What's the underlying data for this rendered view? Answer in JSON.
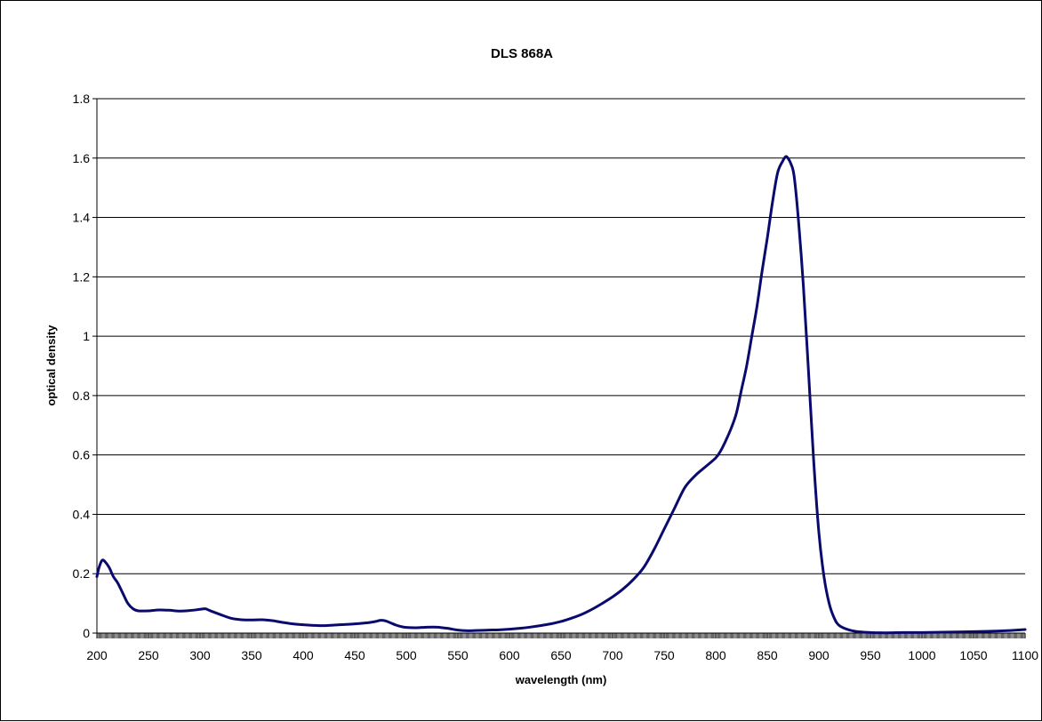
{
  "chart_data": {
    "type": "line",
    "title": "DLS 868A",
    "xlabel": "wavelength (nm)",
    "ylabel": "optical density",
    "xlim": [
      200,
      1100
    ],
    "ylim": [
      0,
      1.8
    ],
    "xticks": [
      200,
      250,
      300,
      350,
      400,
      450,
      500,
      550,
      600,
      650,
      700,
      750,
      800,
      850,
      900,
      950,
      1000,
      1050,
      1100
    ],
    "yticks": [
      0,
      0.2,
      0.4,
      0.6,
      0.8,
      1,
      1.2,
      1.4,
      1.6,
      1.8
    ],
    "ytick_labels": [
      "0",
      "0.2",
      "0.4",
      "0.6",
      "0.8",
      "1",
      "1.2",
      "1.4",
      "1.6",
      "1.8"
    ],
    "grid": "horizontal",
    "legend": "none",
    "line_color": "#0a0a6e",
    "series": [
      {
        "x": [
          200,
          202,
          205,
          208,
          212,
          216,
          220,
          225,
          230,
          235,
          240,
          250,
          260,
          270,
          280,
          290,
          300,
          305,
          310,
          320,
          330,
          340,
          350,
          360,
          370,
          380,
          390,
          400,
          410,
          420,
          430,
          440,
          450,
          460,
          465,
          470,
          475,
          480,
          485,
          490,
          495,
          500,
          510,
          520,
          530,
          540,
          550,
          560,
          570,
          580,
          590,
          600,
          610,
          620,
          630,
          640,
          650,
          660,
          670,
          680,
          690,
          700,
          710,
          720,
          730,
          740,
          750,
          760,
          770,
          780,
          790,
          800,
          805,
          810,
          815,
          820,
          825,
          830,
          835,
          840,
          845,
          850,
          855,
          860,
          865,
          868,
          870,
          873,
          876,
          880,
          885,
          890,
          895,
          900,
          905,
          910,
          915,
          920,
          930,
          940,
          950,
          960,
          970,
          980,
          1000,
          1020,
          1050,
          1080,
          1100
        ],
        "y": [
          0.19,
          0.22,
          0.245,
          0.24,
          0.22,
          0.19,
          0.17,
          0.135,
          0.1,
          0.082,
          0.075,
          0.075,
          0.078,
          0.077,
          0.074,
          0.076,
          0.08,
          0.082,
          0.075,
          0.062,
          0.05,
          0.045,
          0.044,
          0.045,
          0.042,
          0.036,
          0.031,
          0.028,
          0.026,
          0.025,
          0.027,
          0.029,
          0.031,
          0.034,
          0.036,
          0.039,
          0.043,
          0.041,
          0.034,
          0.027,
          0.022,
          0.019,
          0.018,
          0.02,
          0.02,
          0.016,
          0.01,
          0.008,
          0.009,
          0.01,
          0.011,
          0.013,
          0.016,
          0.02,
          0.025,
          0.031,
          0.039,
          0.05,
          0.063,
          0.08,
          0.1,
          0.122,
          0.148,
          0.18,
          0.22,
          0.28,
          0.35,
          0.42,
          0.49,
          0.53,
          0.56,
          0.59,
          0.615,
          0.65,
          0.69,
          0.74,
          0.82,
          0.9,
          1.0,
          1.1,
          1.22,
          1.33,
          1.45,
          1.55,
          1.59,
          1.605,
          1.6,
          1.58,
          1.54,
          1.4,
          1.17,
          0.88,
          0.58,
          0.34,
          0.19,
          0.1,
          0.05,
          0.025,
          0.01,
          0.004,
          0.002,
          0.001,
          0.001,
          0.002,
          0.002,
          0.003,
          0.005,
          0.008,
          0.012
        ]
      }
    ]
  }
}
